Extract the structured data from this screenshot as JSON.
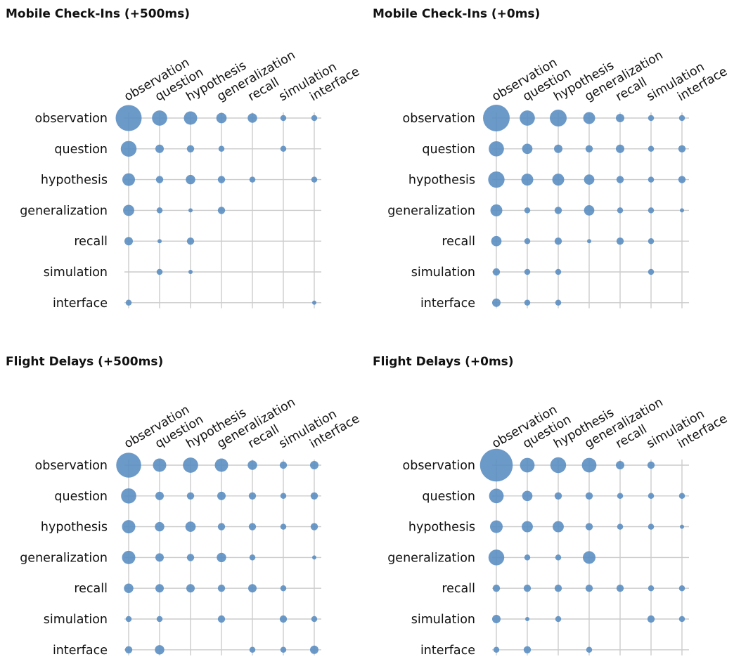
{
  "chart_data": [
    {
      "type": "scatter",
      "title": "Mobile Check-Ins (+500ms)",
      "rows": [
        "observation",
        "question",
        "hypothesis",
        "generalization",
        "recall",
        "simulation",
        "interface"
      ],
      "columns": [
        "observation",
        "question",
        "hypothesis",
        "generalization",
        "recall",
        "simulation",
        "interface"
      ],
      "grid": true,
      "point_color": "#5b8ec2",
      "grid_color": "#cccccc",
      "values": [
        [
          38,
          13,
          10,
          6,
          5,
          2,
          2
        ],
        [
          14,
          4,
          3,
          2,
          0,
          2,
          0
        ],
        [
          9,
          3,
          5,
          3,
          2,
          0,
          2
        ],
        [
          7,
          2,
          1,
          3,
          0,
          0,
          0
        ],
        [
          4,
          1,
          3,
          0,
          0,
          0,
          0
        ],
        [
          0,
          2,
          1,
          0,
          0,
          0,
          0
        ],
        [
          2,
          0,
          0,
          0,
          0,
          0,
          1
        ]
      ]
    },
    {
      "type": "scatter",
      "title": "Mobile Check-Ins (+0ms)",
      "rows": [
        "observation",
        "question",
        "hypothesis",
        "generalization",
        "recall",
        "simulation",
        "interface"
      ],
      "columns": [
        "observation",
        "question",
        "hypothesis",
        "generalization",
        "recall",
        "simulation",
        "interface"
      ],
      "grid": true,
      "point_color": "#5b8ec2",
      "grid_color": "#cccccc",
      "values": [
        [
          40,
          13,
          16,
          8,
          4,
          2,
          2
        ],
        [
          13,
          6,
          4,
          3,
          4,
          2,
          3
        ],
        [
          15,
          8,
          8,
          6,
          3,
          2,
          3
        ],
        [
          8,
          2,
          3,
          6,
          2,
          2,
          1
        ],
        [
          6,
          2,
          3,
          1,
          3,
          2,
          0
        ],
        [
          3,
          2,
          2,
          0,
          0,
          2,
          0
        ],
        [
          4,
          2,
          2,
          0,
          0,
          0,
          0
        ]
      ]
    },
    {
      "type": "scatter",
      "title": "Flight Delays (+500ms)",
      "rows": [
        "observation",
        "question",
        "hypothesis",
        "generalization",
        "recall",
        "simulation",
        "interface"
      ],
      "columns": [
        "observation",
        "question",
        "hypothesis",
        "generalization",
        "recall",
        "simulation",
        "interface"
      ],
      "grid": true,
      "point_color": "#5b8ec2",
      "grid_color": "#cccccc",
      "values": [
        [
          35,
          10,
          13,
          10,
          5,
          3,
          4
        ],
        [
          13,
          4,
          3,
          4,
          3,
          2,
          3
        ],
        [
          10,
          5,
          6,
          3,
          3,
          2,
          3
        ],
        [
          10,
          4,
          3,
          5,
          2,
          0,
          1
        ],
        [
          5,
          4,
          4,
          3,
          4,
          2,
          0
        ],
        [
          2,
          2,
          0,
          3,
          0,
          3,
          2
        ],
        [
          3,
          5,
          0,
          0,
          2,
          2,
          4
        ]
      ]
    },
    {
      "type": "scatter",
      "title": "Flight Delays (+0ms)",
      "rows": [
        "observation",
        "question",
        "hypothesis",
        "generalization",
        "recall",
        "simulation",
        "interface"
      ],
      "columns": [
        "observation",
        "question",
        "hypothesis",
        "generalization",
        "recall",
        "simulation",
        "interface"
      ],
      "grid": true,
      "point_color": "#5b8ec2",
      "grid_color": "#cccccc",
      "values": [
        [
          60,
          12,
          14,
          12,
          4,
          3,
          0
        ],
        [
          12,
          6,
          3,
          3,
          2,
          2,
          2
        ],
        [
          9,
          7,
          7,
          3,
          2,
          2,
          1
        ],
        [
          14,
          2,
          2,
          9,
          0,
          0,
          0
        ],
        [
          3,
          3,
          3,
          3,
          3,
          2,
          2
        ],
        [
          4,
          1,
          2,
          0,
          0,
          3,
          2
        ],
        [
          2,
          3,
          0,
          2,
          0,
          0,
          0
        ]
      ]
    }
  ]
}
